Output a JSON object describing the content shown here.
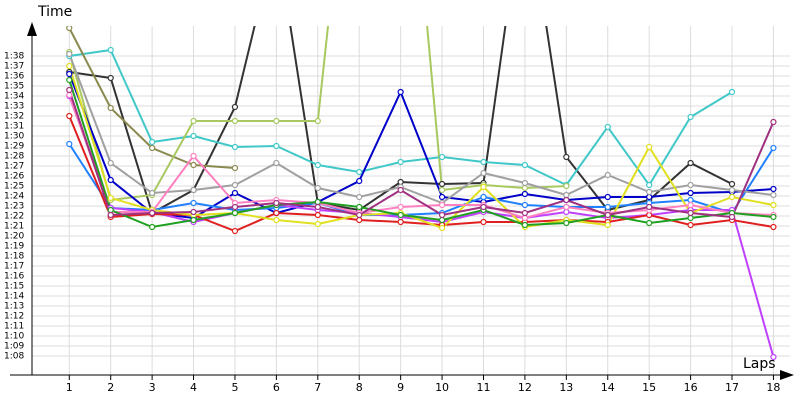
{
  "chart_data": {
    "type": "line",
    "y_label": "Time",
    "x_label": "Laps",
    "x": [
      1,
      2,
      3,
      4,
      5,
      6,
      7,
      8,
      9,
      10,
      11,
      12,
      13,
      14,
      15,
      16,
      17,
      18
    ],
    "xlim": [
      0.1,
      18.4
    ],
    "xticks": [
      1,
      2,
      3,
      4,
      5,
      6,
      7,
      8,
      9,
      10,
      11,
      12,
      13,
      14,
      15,
      16,
      17,
      18
    ],
    "ylim": [
      66.1,
      101
    ],
    "yticks": [
      {
        "value": 68,
        "label": "1:08"
      },
      {
        "value": 69,
        "label": "1:09"
      },
      {
        "value": 70,
        "label": "1:10"
      },
      {
        "value": 71,
        "label": "1:11"
      },
      {
        "value": 72,
        "label": "1:12"
      },
      {
        "value": 73,
        "label": "1:13"
      },
      {
        "value": 74,
        "label": "1:14"
      },
      {
        "value": 75,
        "label": "1:15"
      },
      {
        "value": 76,
        "label": "1:16"
      },
      {
        "value": 77,
        "label": "1:17"
      },
      {
        "value": 78,
        "label": "1:18"
      },
      {
        "value": 79,
        "label": "1:19"
      },
      {
        "value": 80,
        "label": "1:20"
      },
      {
        "value": 81,
        "label": "1:21"
      },
      {
        "value": 82,
        "label": "1:22"
      },
      {
        "value": 83,
        "label": "1:23"
      },
      {
        "value": 84,
        "label": "1:24"
      },
      {
        "value": 85,
        "label": "1:25"
      },
      {
        "value": 86,
        "label": "1:26"
      },
      {
        "value": 87,
        "label": "1:27"
      },
      {
        "value": 88,
        "label": "1:28"
      },
      {
        "value": 89,
        "label": "1:29"
      },
      {
        "value": 90,
        "label": "1:30"
      },
      {
        "value": 91,
        "label": "1:31"
      },
      {
        "value": 92,
        "label": "1:32"
      },
      {
        "value": 93,
        "label": "1:33"
      },
      {
        "value": 94,
        "label": "1:34"
      },
      {
        "value": 95,
        "label": "1:35"
      },
      {
        "value": 96,
        "label": "1:36"
      },
      {
        "value": 97,
        "label": "1:37"
      },
      {
        "value": 98,
        "label": "1:38"
      }
    ],
    "grid": true,
    "series": [
      {
        "color": "#333333",
        "values": [
          96.4,
          95.8,
          82.3,
          84.6,
          92.9,
          110,
          83.3,
          82.6,
          85.4,
          85.2,
          85.3,
          115,
          87.9,
          82.6,
          83.6,
          87.3,
          85.2,
          null
        ]
      },
      {
        "color": "#40c8c8",
        "values": [
          98.0,
          98.6,
          89.4,
          90.0,
          88.9,
          89.0,
          87.1,
          86.4,
          87.4,
          87.9,
          87.4,
          87.1,
          85.1,
          90.9,
          85.1,
          91.9,
          94.4,
          null
        ]
      },
      {
        "color": "#8a8a50",
        "values": [
          100.8,
          92.8,
          88.8,
          87.1,
          86.8,
          null,
          null,
          null,
          null,
          null,
          null,
          null,
          null,
          null,
          null,
          null,
          null,
          null
        ]
      },
      {
        "color": "#a8c860",
        "values": [
          98.4,
          83.6,
          84.1,
          91.5,
          91.5,
          91.5,
          91.5,
          130,
          130,
          84.6,
          85.1,
          84.8,
          85.0,
          null,
          null,
          null,
          null,
          null
        ]
      },
      {
        "color": "#0000c8",
        "values": [
          96.2,
          85.6,
          82.3,
          81.8,
          84.3,
          82.3,
          83.4,
          85.5,
          94.4,
          83.9,
          83.4,
          84.2,
          83.6,
          83.9,
          83.9,
          84.3,
          84.4,
          84.7
        ]
      },
      {
        "color": "#2080ff",
        "values": [
          89.2,
          82.8,
          82.6,
          83.3,
          82.6,
          82.8,
          83.3,
          82.1,
          82.1,
          82.3,
          83.9,
          83.1,
          82.9,
          82.9,
          83.3,
          83.6,
          82.3,
          88.8
        ]
      },
      {
        "color": "#c040ff",
        "values": [
          94.0,
          82.8,
          82.4,
          81.4,
          82.3,
          83.1,
          82.6,
          82.3,
          81.9,
          81.4,
          82.4,
          81.8,
          82.4,
          81.8,
          82.1,
          82.6,
          82.6,
          67.9
        ]
      },
      {
        "color": "#e02020",
        "values": [
          92.0,
          81.9,
          82.2,
          82.1,
          80.5,
          82.3,
          82.1,
          81.6,
          81.4,
          81.1,
          81.4,
          81.4,
          81.6,
          81.4,
          82.1,
          81.1,
          81.6,
          80.9
        ]
      },
      {
        "color": "#a0a0a0",
        "values": [
          98.2,
          87.3,
          84.3,
          84.6,
          85.1,
          87.3,
          84.8,
          83.9,
          84.9,
          83.3,
          86.3,
          85.3,
          84.1,
          86.1,
          84.4,
          85.1,
          84.6,
          84.1
        ]
      },
      {
        "color": "#e0e020",
        "values": [
          97.0,
          83.8,
          82.6,
          82.1,
          82.3,
          81.6,
          81.2,
          82.1,
          82.3,
          80.8,
          84.9,
          80.9,
          81.6,
          81.1,
          88.9,
          82.3,
          83.9,
          83.1
        ]
      },
      {
        "color": "#ff80c0",
        "values": [
          94.1,
          82.4,
          82.4,
          88.0,
          83.3,
          83.6,
          83.3,
          82.3,
          82.9,
          83.1,
          83.1,
          81.8,
          82.9,
          82.3,
          82.6,
          83.1,
          82.3,
          82.1
        ]
      },
      {
        "color": "#20a020",
        "values": [
          95.6,
          82.6,
          80.9,
          81.6,
          82.3,
          83.1,
          83.4,
          82.9,
          82.1,
          81.6,
          82.6,
          81.1,
          81.3,
          82.1,
          81.3,
          81.8,
          82.3,
          81.9
        ]
      },
      {
        "color": "#a03080",
        "values": [
          94.6,
          82.1,
          82.3,
          82.4,
          82.9,
          83.3,
          82.9,
          82.1,
          84.6,
          82.1,
          82.9,
          82.3,
          83.6,
          82.1,
          82.9,
          82.3,
          81.9,
          91.4
        ]
      }
    ]
  }
}
